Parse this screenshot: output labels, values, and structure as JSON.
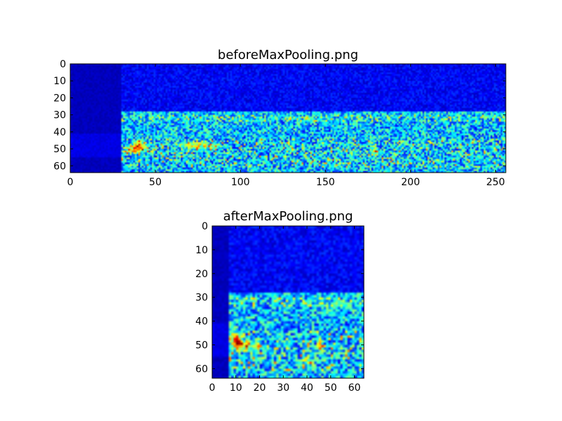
{
  "chart_data": [
    {
      "type": "heatmap",
      "title": "beforeMaxPooling.png",
      "xlim": [
        0,
        256
      ],
      "ylim": [
        64,
        0
      ],
      "x_ticks": [
        0,
        50,
        100,
        150,
        200,
        250
      ],
      "y_ticks": [
        0,
        10,
        20,
        30,
        40,
        50,
        60
      ],
      "colormap": "jet",
      "description_of_values": "spectrogram intensity; near-zero for columns 0-29 and rows 0-28; speckled low-to-mid values below row 28 with a bright band at rows 30-33 and hot spots near x=35-45, y=45-52"
    },
    {
      "type": "heatmap",
      "title": "afterMaxPooling.png",
      "xlim": [
        0,
        64
      ],
      "ylim": [
        64,
        0
      ],
      "x_ticks": [
        0,
        10,
        20,
        30,
        40,
        50,
        60
      ],
      "y_ticks": [
        0,
        10,
        20,
        30,
        40,
        50,
        60
      ],
      "colormap": "jet",
      "description_of_values": "max-pooled spectrogram; near-zero for columns 0-6 and rows 0-28; band at rows 30-33; hot spots near x=8-12, y=43-52"
    }
  ],
  "colors": {
    "background": "#ffffff",
    "axes_frame": "#000000",
    "cmap_low": "#00008f",
    "cmap_high": "#800000"
  }
}
